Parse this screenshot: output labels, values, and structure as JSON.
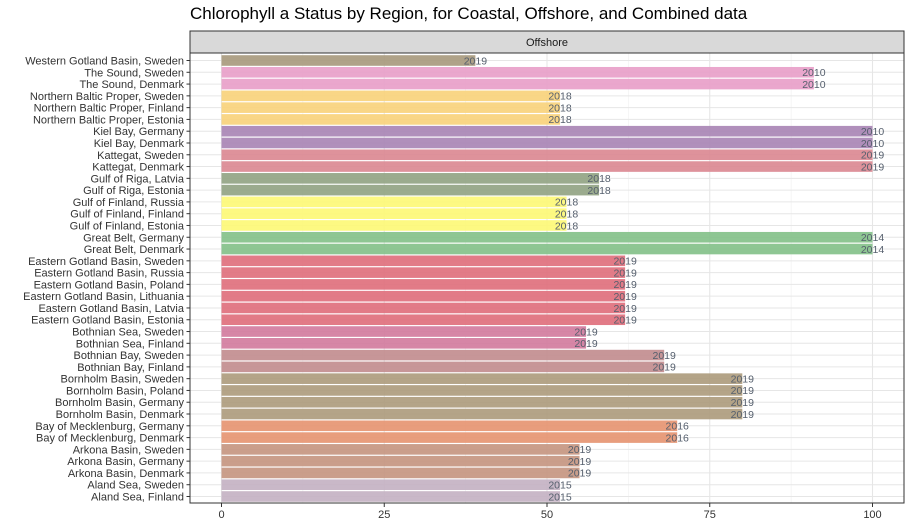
{
  "chart_data": {
    "type": "bar",
    "orientation": "horizontal",
    "title": "Chlorophyll a Status by Region, for Coastal, Offshore, and Combined data",
    "facet_label": "Offshore",
    "xlabel": "",
    "ylabel": "",
    "xlim": [
      0,
      100
    ],
    "x_ticks": [
      0,
      25,
      50,
      75,
      100
    ],
    "grid": true,
    "legend": "none",
    "categories": [
      "Western Gotland Basin, Sweden",
      "The Sound, Sweden",
      "The Sound, Denmark",
      "Northern Baltic Proper, Sweden",
      "Northern Baltic Proper, Finland",
      "Northern Baltic Proper, Estonia",
      "Kiel Bay, Germany",
      "Kiel Bay, Denmark",
      "Kattegat, Sweden",
      "Kattegat, Denmark",
      "Gulf of Riga, Latvia",
      "Gulf of Riga, Estonia",
      "Gulf of Finland, Russia",
      "Gulf of Finland, Finland",
      "Gulf of Finland, Estonia",
      "Great Belt, Germany",
      "Great Belt, Denmark",
      "Eastern Gotland Basin, Sweden",
      "Eastern Gotland Basin, Russia",
      "Eastern Gotland Basin, Poland",
      "Eastern Gotland Basin, Lithuania",
      "Eastern Gotland Basin, Latvia",
      "Eastern Gotland Basin, Estonia",
      "Bothnian Sea, Sweden",
      "Bothnian Sea, Finland",
      "Bothnian Bay, Sweden",
      "Bothnian Bay, Finland",
      "Bornholm Basin, Sweden",
      "Bornholm Basin, Poland",
      "Bornholm Basin, Germany",
      "Bornholm Basin, Denmark",
      "Bay of Mecklenburg, Germany",
      "Bay of Mecklenburg, Denmark",
      "Arkona Basin, Sweden",
      "Arkona Basin, Germany",
      "Arkona Basin, Denmark",
      "Aland Sea, Sweden",
      "Aland Sea, Finland"
    ],
    "values": [
      39,
      91,
      91,
      52,
      52,
      52,
      100,
      100,
      100,
      100,
      58,
      58,
      53,
      53,
      53,
      100,
      100,
      62,
      62,
      62,
      62,
      62,
      62,
      56,
      56,
      68,
      68,
      80,
      80,
      80,
      80,
      70,
      70,
      55,
      55,
      55,
      52,
      52
    ],
    "data_labels": [
      "2019",
      "2010",
      "2010",
      "2018",
      "2018",
      "2018",
      "2010",
      "2010",
      "2019",
      "2019",
      "2018",
      "2018",
      "2018",
      "2018",
      "2018",
      "2014",
      "2014",
      "2019",
      "2019",
      "2019",
      "2019",
      "2019",
      "2019",
      "2019",
      "2019",
      "2019",
      "2019",
      "2019",
      "2019",
      "2019",
      "2019",
      "2016",
      "2016",
      "2019",
      "2019",
      "2019",
      "2015",
      "2015"
    ],
    "colors": [
      "#a89a7e",
      "#e8a0c9",
      "#e8a0c9",
      "#f9d27c",
      "#f9d27c",
      "#f9d27c",
      "#a986b5",
      "#a986b5",
      "#db8992",
      "#db8992",
      "#93a484",
      "#93a484",
      "#fdf877",
      "#fdf877",
      "#fdf877",
      "#84c18a",
      "#84c18a",
      "#e0707d",
      "#e0707d",
      "#e0707d",
      "#e0707d",
      "#e0707d",
      "#e0707d",
      "#d27c9e",
      "#d27c9e",
      "#c28d8f",
      "#c28d8f",
      "#ae9c7e",
      "#ae9c7e",
      "#ae9c7e",
      "#ae9c7e",
      "#e69572",
      "#e69572",
      "#c69681",
      "#c69681",
      "#c69681",
      "#c4b2c3",
      "#c4b2c3"
    ]
  }
}
